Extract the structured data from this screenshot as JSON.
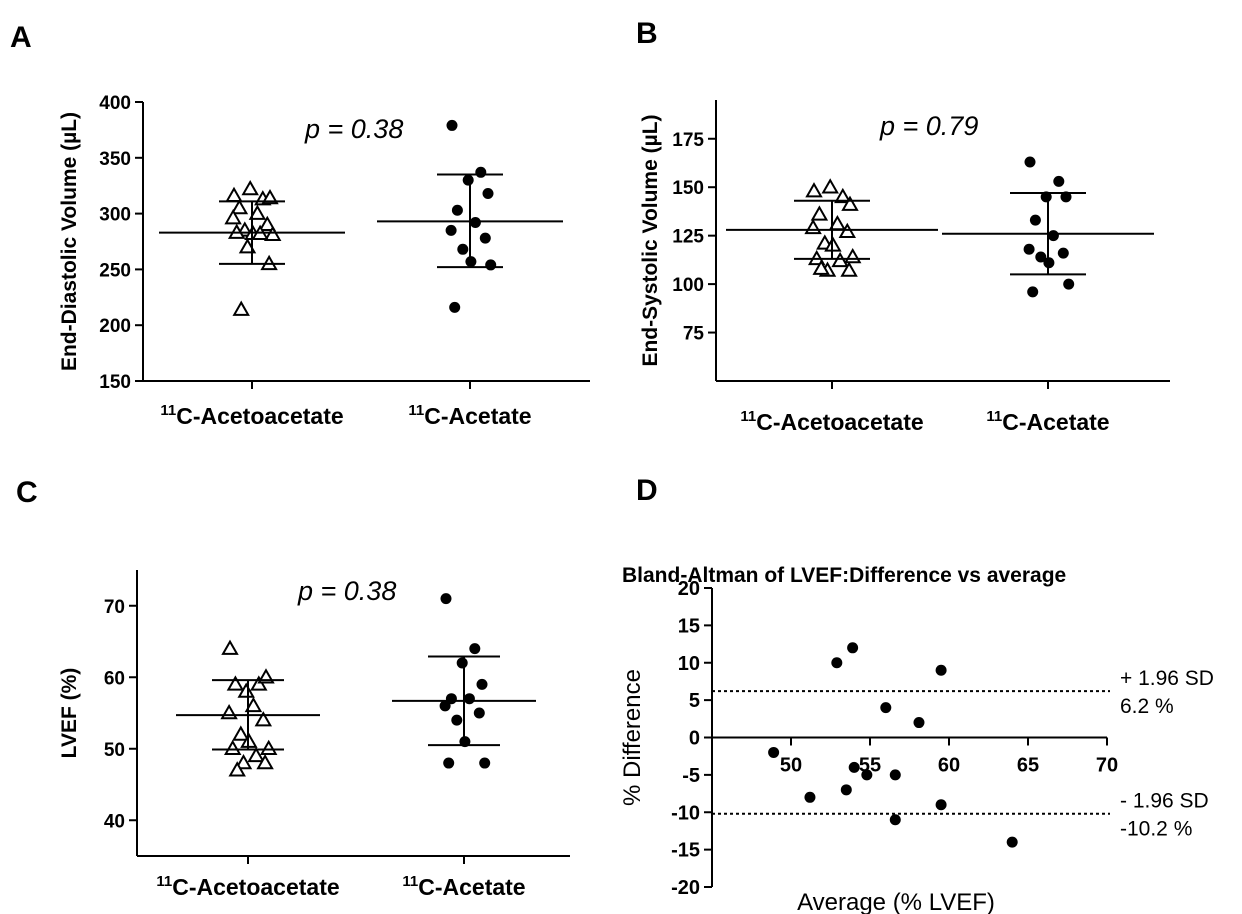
{
  "chart_data": [
    {
      "panel": "A",
      "type": "scatter",
      "ylabel": "End-Diastolic Volume (µL)",
      "ylim": [
        150,
        400
      ],
      "yticks": [
        150,
        200,
        250,
        300,
        350,
        400
      ],
      "p_text": "p = 0.38",
      "groups": [
        {
          "label_sup": "11",
          "label": "C-Acetoacetate",
          "marker": "triangle",
          "mean": 283,
          "sd_upper": 311,
          "sd_lower": 255,
          "values": [
            316,
            313,
            322,
            314,
            305,
            300,
            296,
            290,
            285,
            282,
            281,
            283,
            282,
            270,
            255,
            214
          ]
        },
        {
          "label_sup": "11",
          "label": "C-Acetate",
          "marker": "circle",
          "mean": 293,
          "sd_upper": 335,
          "sd_lower": 252,
          "values": [
            379,
            337,
            330,
            318,
            303,
            292,
            285,
            278,
            268,
            257,
            254,
            216
          ]
        }
      ]
    },
    {
      "panel": "B",
      "type": "scatter",
      "ylabel": "End-Systolic Volume (µL)",
      "ylim": [
        50,
        195
      ],
      "yticks": [
        75,
        100,
        125,
        150,
        175
      ],
      "p_text": "p = 0.79",
      "groups": [
        {
          "label_sup": "11",
          "label": "C-Acetoacetate",
          "marker": "triangle",
          "mean": 128,
          "sd_upper": 143,
          "sd_lower": 113,
          "values": [
            148,
            145,
            150,
            141,
            136,
            131,
            129,
            127,
            121,
            120,
            114,
            113,
            112,
            107,
            107,
            108
          ]
        },
        {
          "label_sup": "11",
          "label": "C-Acetate",
          "marker": "circle",
          "mean": 126,
          "sd_upper": 147,
          "sd_lower": 105,
          "values": [
            163,
            153,
            145,
            145,
            133,
            125,
            118,
            116,
            114,
            111,
            100,
            96
          ]
        }
      ]
    },
    {
      "panel": "C",
      "type": "scatter",
      "ylabel": "LVEF (%)",
      "ylim": [
        35,
        75
      ],
      "yticks": [
        40,
        50,
        60,
        70
      ],
      "p_text": "p = 0.38",
      "groups": [
        {
          "label_sup": "11",
          "label": "C-Acetoacetate",
          "marker": "triangle",
          "mean": 54.7,
          "sd_upper": 59.6,
          "sd_lower": 49.9,
          "values": [
            64,
            59,
            58,
            60,
            59,
            56,
            55,
            54,
            52,
            51,
            50,
            50,
            49,
            48,
            48,
            47
          ]
        },
        {
          "label_sup": "11",
          "label": "C-Acetate",
          "marker": "circle",
          "mean": 56.7,
          "sd_upper": 62.9,
          "sd_lower": 50.5,
          "values": [
            71,
            64,
            62,
            59,
            57,
            57,
            56,
            55,
            54,
            51,
            48,
            48
          ]
        }
      ]
    },
    {
      "panel": "D",
      "type": "scatter",
      "title": "Bland-Altman of LVEF:Difference vs average",
      "xlabel": "Average (% LVEF)",
      "ylabel": "% Difference",
      "xlim": [
        45,
        70
      ],
      "ylim": [
        -20,
        20
      ],
      "xticks": [
        50,
        55,
        60,
        65,
        70
      ],
      "yticks": [
        -20,
        -15,
        -10,
        -5,
        0,
        5,
        10,
        15,
        20
      ],
      "reference_lines": [
        {
          "value": 6.2,
          "label1": "+ 1.96 SD",
          "label2": "6.2 %"
        },
        {
          "value": -10.2,
          "label1": "- 1.96 SD",
          "label2": "-10.2 %"
        }
      ],
      "points": [
        {
          "x": 52.9,
          "y": 10
        },
        {
          "x": 53.9,
          "y": 12
        },
        {
          "x": 59.5,
          "y": 9
        },
        {
          "x": 56.0,
          "y": 4
        },
        {
          "x": 58.1,
          "y": 2
        },
        {
          "x": 48.9,
          "y": -2
        },
        {
          "x": 51.2,
          "y": -8
        },
        {
          "x": 53.5,
          "y": -7
        },
        {
          "x": 54.0,
          "y": -4
        },
        {
          "x": 54.8,
          "y": -5
        },
        {
          "x": 56.6,
          "y": -5
        },
        {
          "x": 59.5,
          "y": -9
        },
        {
          "x": 56.6,
          "y": -11
        },
        {
          "x": 64.0,
          "y": -14
        }
      ]
    }
  ]
}
